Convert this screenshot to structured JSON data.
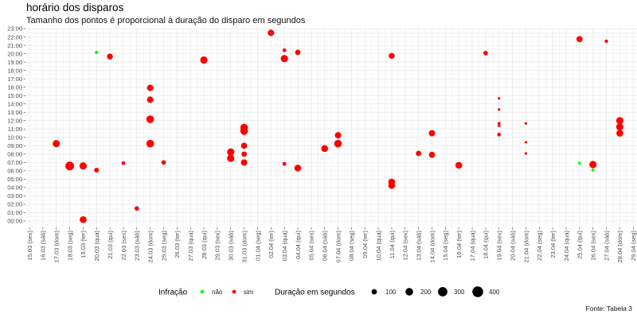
{
  "title": "horário dos disparos",
  "subtitle": "Tamanho dos pontos é proporcional à duração do disparo em segundos",
  "caption": "Fonte: Tabela 3",
  "colors": {
    "nao": "#00ff00",
    "sim": "#ff0000",
    "grid": "#ebebeb",
    "panel": "#ffffff"
  },
  "chart_data": {
    "type": "scatter",
    "title": "horário dos disparos",
    "subtitle": "Tamanho dos pontos é proporcional à duração do disparo em segundos",
    "xlabel": "",
    "ylabel": "",
    "grid": true,
    "x_ticks": [
      "15.03 (sex)",
      "16.03 (sáb)",
      "17.03 (dom)",
      "18.03 (seg)",
      "19.03 (ter)",
      "20.03 (qua)",
      "21.03 (qui)",
      "22.03 (sex)",
      "23.03 (sáb)",
      "24.03 (dom)",
      "25.03 (seg)",
      "26.03 (ter)",
      "27.03 (qua)",
      "28.03 (qui)",
      "29.03 (sex)",
      "30.03 (sáb)",
      "31.03 (dom)",
      "01.04 (seg)",
      "02.04 (ter)",
      "03.04 (qua)",
      "04.04 (qui)",
      "05.04 (sex)",
      "06.04 (sáb)",
      "07.04 (dom)",
      "08.04 (seg)",
      "09.04 (ter)",
      "10.04 (qua)",
      "11.04 (qui)",
      "12.04 (sex)",
      "13.04 (sáb)",
      "14.04 (dom)",
      "15.04 (seg)",
      "16.04 (ter)",
      "17.04 (qua)",
      "18.04 (qui)",
      "19.04 (sex)",
      "20.04 (sáb)",
      "21.04 (dom)",
      "22.04 (seg)",
      "23.04 (ter)",
      "24.04 (qua)",
      "25.04 (qui)",
      "26.04 (sex)",
      "27.04 (sáb)",
      "28.04 (dom)",
      "29.04 (seg)",
      "30.04 (ter)"
    ],
    "y_ticks": [
      "00:00",
      "01:00",
      "02:00",
      "03:00",
      "04:00",
      "05:00",
      "06:00",
      "07:00",
      "08:00",
      "09:00",
      "10:00",
      "11:00",
      "12:00",
      "13:00",
      "14:00",
      "15:00",
      "16:00",
      "17:00",
      "18:00",
      "19:00",
      "20:00",
      "21:00",
      "22:00",
      "23:00"
    ],
    "ylim": [
      "00:00",
      "23:00"
    ],
    "legend": {
      "placement": "bottom",
      "color_title": "Infração",
      "color_entries": [
        {
          "label": "não",
          "key": "nao"
        },
        {
          "label": "sim",
          "key": "sim"
        }
      ],
      "size_title": "Duração em segundos",
      "size_entries": [
        100,
        200,
        300,
        400
      ]
    },
    "points": [
      {
        "date": "17.03",
        "time": "09:15",
        "duration": 180,
        "infracao": "sim"
      },
      {
        "date": "18.03",
        "time": "06:35",
        "duration": 260,
        "infracao": "sim"
      },
      {
        "date": "19.03",
        "time": "06:35",
        "duration": 180,
        "infracao": "sim"
      },
      {
        "date": "19.03",
        "time": "00:10",
        "duration": 160,
        "infracao": "sim"
      },
      {
        "date": "20.03",
        "time": "20:10",
        "duration": 40,
        "infracao": "nao"
      },
      {
        "date": "20.03",
        "time": "06:05",
        "duration": 80,
        "infracao": "sim"
      },
      {
        "date": "21.03",
        "time": "19:40",
        "duration": 120,
        "infracao": "sim"
      },
      {
        "date": "22.03",
        "time": "06:55",
        "duration": 50,
        "infracao": "sim"
      },
      {
        "date": "23.03",
        "time": "01:30",
        "duration": 70,
        "infracao": "sim"
      },
      {
        "date": "24.03",
        "time": "15:55",
        "duration": 140,
        "infracao": "sim"
      },
      {
        "date": "24.03",
        "time": "14:30",
        "duration": 140,
        "infracao": "sim"
      },
      {
        "date": "24.03",
        "time": "12:10",
        "duration": 200,
        "infracao": "sim"
      },
      {
        "date": "24.03",
        "time": "09:15",
        "duration": 200,
        "infracao": "sim"
      },
      {
        "date": "25.03",
        "time": "07:00",
        "duration": 70,
        "infracao": "sim"
      },
      {
        "date": "28.03",
        "time": "19:15",
        "duration": 180,
        "infracao": "sim"
      },
      {
        "date": "30.03",
        "time": "08:15",
        "duration": 180,
        "infracao": "sim"
      },
      {
        "date": "30.03",
        "time": "07:30",
        "duration": 180,
        "infracao": "sim"
      },
      {
        "date": "31.03",
        "time": "11:10",
        "duration": 200,
        "infracao": "sim"
      },
      {
        "date": "31.03",
        "time": "10:45",
        "duration": 200,
        "infracao": "sim"
      },
      {
        "date": "31.03",
        "time": "09:00",
        "duration": 130,
        "infracao": "sim"
      },
      {
        "date": "31.03",
        "time": "08:00",
        "duration": 100,
        "infracao": "sim"
      },
      {
        "date": "31.03",
        "time": "07:00",
        "duration": 140,
        "infracao": "sim"
      },
      {
        "date": "02.04",
        "time": "22:30",
        "duration": 140,
        "infracao": "sim"
      },
      {
        "date": "03.04",
        "time": "20:25",
        "duration": 50,
        "infracao": "sim"
      },
      {
        "date": "03.04",
        "time": "19:25",
        "duration": 180,
        "infracao": "sim"
      },
      {
        "date": "03.04",
        "time": "06:50",
        "duration": 50,
        "infracao": "sim"
      },
      {
        "date": "04.04",
        "time": "20:10",
        "duration": 100,
        "infracao": "sim"
      },
      {
        "date": "04.04",
        "time": "06:20",
        "duration": 160,
        "infracao": "sim"
      },
      {
        "date": "06.04",
        "time": "08:40",
        "duration": 160,
        "infracao": "sim"
      },
      {
        "date": "07.04",
        "time": "10:15",
        "duration": 140,
        "infracao": "sim"
      },
      {
        "date": "07.04",
        "time": "09:15",
        "duration": 200,
        "infracao": "sim"
      },
      {
        "date": "11.04",
        "time": "19:45",
        "duration": 120,
        "infracao": "sim"
      },
      {
        "date": "11.04",
        "time": "04:40",
        "duration": 160,
        "infracao": "sim"
      },
      {
        "date": "11.04",
        "time": "04:15",
        "duration": 160,
        "infracao": "sim"
      },
      {
        "date": "13.04",
        "time": "08:05",
        "duration": 100,
        "infracao": "sim"
      },
      {
        "date": "14.04",
        "time": "10:30",
        "duration": 140,
        "infracao": "sim"
      },
      {
        "date": "14.04",
        "time": "07:55",
        "duration": 130,
        "infracao": "sim"
      },
      {
        "date": "16.04",
        "time": "06:40",
        "duration": 160,
        "infracao": "sim"
      },
      {
        "date": "18.04",
        "time": "20:05",
        "duration": 70,
        "infracao": "sim"
      },
      {
        "date": "19.04",
        "time": "14:40",
        "duration": 20,
        "infracao": "sim"
      },
      {
        "date": "19.04",
        "time": "13:20",
        "duration": 20,
        "infracao": "sim"
      },
      {
        "date": "19.04",
        "time": "11:40",
        "duration": 30,
        "infracao": "sim"
      },
      {
        "date": "19.04",
        "time": "11:25",
        "duration": 30,
        "infracao": "sim"
      },
      {
        "date": "19.04",
        "time": "10:20",
        "duration": 50,
        "infracao": "sim"
      },
      {
        "date": "21.04",
        "time": "11:40",
        "duration": 8,
        "infracao": "sim"
      },
      {
        "date": "21.04",
        "time": "09:25",
        "duration": 8,
        "infracao": "sim"
      },
      {
        "date": "21.04",
        "time": "08:05",
        "duration": 8,
        "infracao": "sim"
      },
      {
        "date": "25.04",
        "time": "21:45",
        "duration": 130,
        "infracao": "sim"
      },
      {
        "date": "25.04",
        "time": "06:55",
        "duration": 30,
        "infracao": "nao"
      },
      {
        "date": "26.04",
        "time": "06:45",
        "duration": 180,
        "infracao": "sim"
      },
      {
        "date": "26.04",
        "time": "06:05",
        "duration": 30,
        "infracao": "nao"
      },
      {
        "date": "27.04",
        "time": "21:30",
        "duration": 40,
        "infracao": "sim"
      },
      {
        "date": "28.04",
        "time": "12:00",
        "duration": 180,
        "infracao": "sim"
      },
      {
        "date": "28.04",
        "time": "11:15",
        "duration": 180,
        "infracao": "sim"
      },
      {
        "date": "28.04",
        "time": "10:30",
        "duration": 160,
        "infracao": "sim"
      }
    ]
  }
}
